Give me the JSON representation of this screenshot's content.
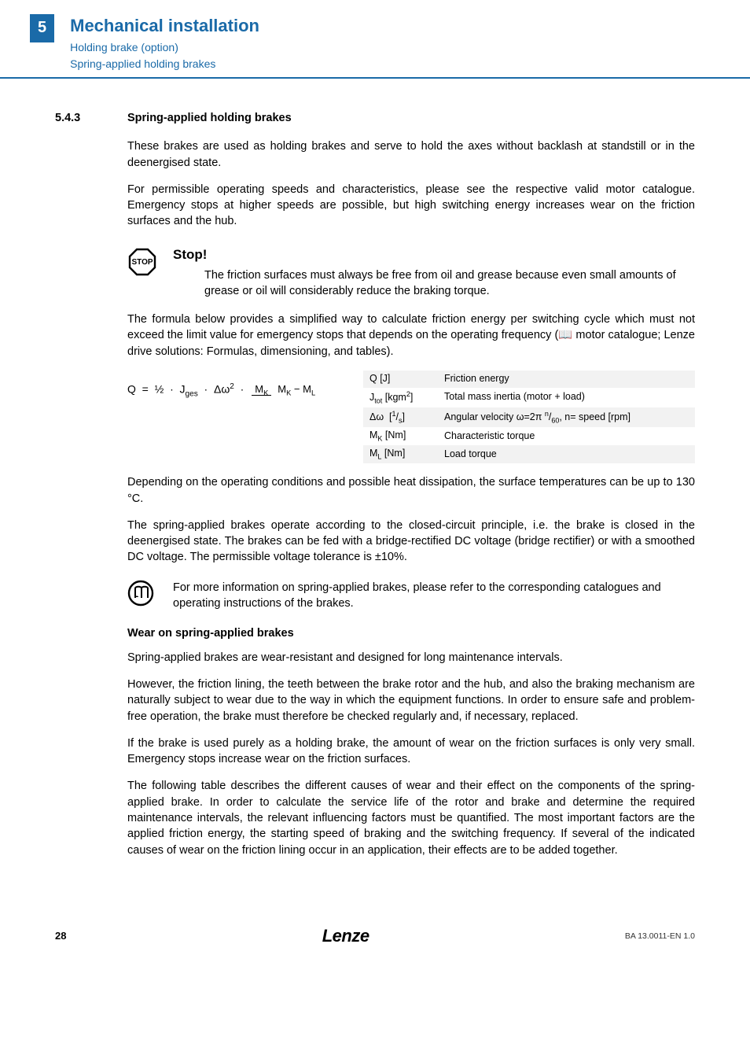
{
  "header": {
    "chapter_num": "5",
    "chapter_title": "Mechanical installation",
    "sub_lines": [
      "Holding brake (option)",
      "Spring-applied holding brakes"
    ]
  },
  "section": {
    "number": "5.4.3",
    "title": "Spring-applied holding brakes"
  },
  "paras": {
    "p1": "These brakes are used as holding brakes and serve to hold the axes without backlash at standstill or in the deenergised state.",
    "p2": "For permissible operating speeds and characteristics, please see the respective valid motor catalogue. Emergency stops at higher speeds are possible, but high switching energy increases wear on the friction surfaces and the hub."
  },
  "stop": {
    "title": "Stop!",
    "text": "The friction surfaces must always be free from oil and grease because even small amounts of grease or oil will considerably reduce the braking torque."
  },
  "formula_intro": "The formula below provides a simplified way to calculate friction energy per switching cycle which must not exceed the limit value for emergency stops that depends on the operating frequency (📖 motor catalogue; Lenze drive solutions: Formulas, dimensioning, and tables).",
  "defs": [
    {
      "sym": "Q [J]",
      "desc": "Friction energy"
    },
    {
      "sym": "J<sub>tot</sub> [kgm<sup>2</sup>]",
      "desc": "Total mass inertia (motor + load)"
    },
    {
      "sym": "Δω&nbsp; [<sup>1</sup>/<sub>s</sub>]",
      "desc": "Angular velocity ω=2π <sup>n</sup>/<sub>60</sub>, n= speed [rpm]"
    },
    {
      "sym": "M<sub>K</sub> [Nm]",
      "desc": "Characteristic torque"
    },
    {
      "sym": "M<sub>L</sub> [Nm]",
      "desc": "Load torque"
    }
  ],
  "p3": "Depending on the operating conditions and possible heat dissipation, the surface temperatures can be up to 130 °C.",
  "p4": "The spring-applied brakes operate according to the closed-circuit principle, i.e. the brake is closed in the deenergised state. The brakes can be fed with a bridge-rectified DC voltage (bridge rectifier) or with a smoothed DC voltage. The permissible voltage tolerance is ±10%.",
  "info": "For more information on spring-applied brakes, please refer to the corresponding catalogues and operating instructions of the brakes.",
  "subhead": "Wear on spring-applied brakes",
  "p5": "Spring-applied brakes are wear-resistant and designed for long maintenance intervals.",
  "p6": "However, the friction lining, the teeth between the brake rotor and the hub, and also the braking mechanism are naturally subject to wear due to the way in which the equipment functions. In order to ensure safe and problem-free operation, the brake must therefore be checked regularly and, if necessary, replaced.",
  "p7": "If the brake is used purely as a holding brake, the amount of wear on the friction surfaces is only very small. Emergency stops increase wear on the friction surfaces.",
  "p8": "The following table describes the different causes of wear and their effect on the components of the spring-applied brake. In order to calculate the service life of the rotor and brake and determine the required maintenance intervals, the relevant influencing factors must be quantified. The most important factors are the applied friction energy, the starting speed of braking and the switching frequency. If several of the indicated causes of wear on the friction lining occur in an application, their effects are to be added together.",
  "footer": {
    "page": "28",
    "brand": "Lenze",
    "doc_code": "BA 13.0011-EN   1.0"
  },
  "colors": {
    "brand_blue": "#1a6aa8",
    "row_alt": "#f2f2f2"
  }
}
